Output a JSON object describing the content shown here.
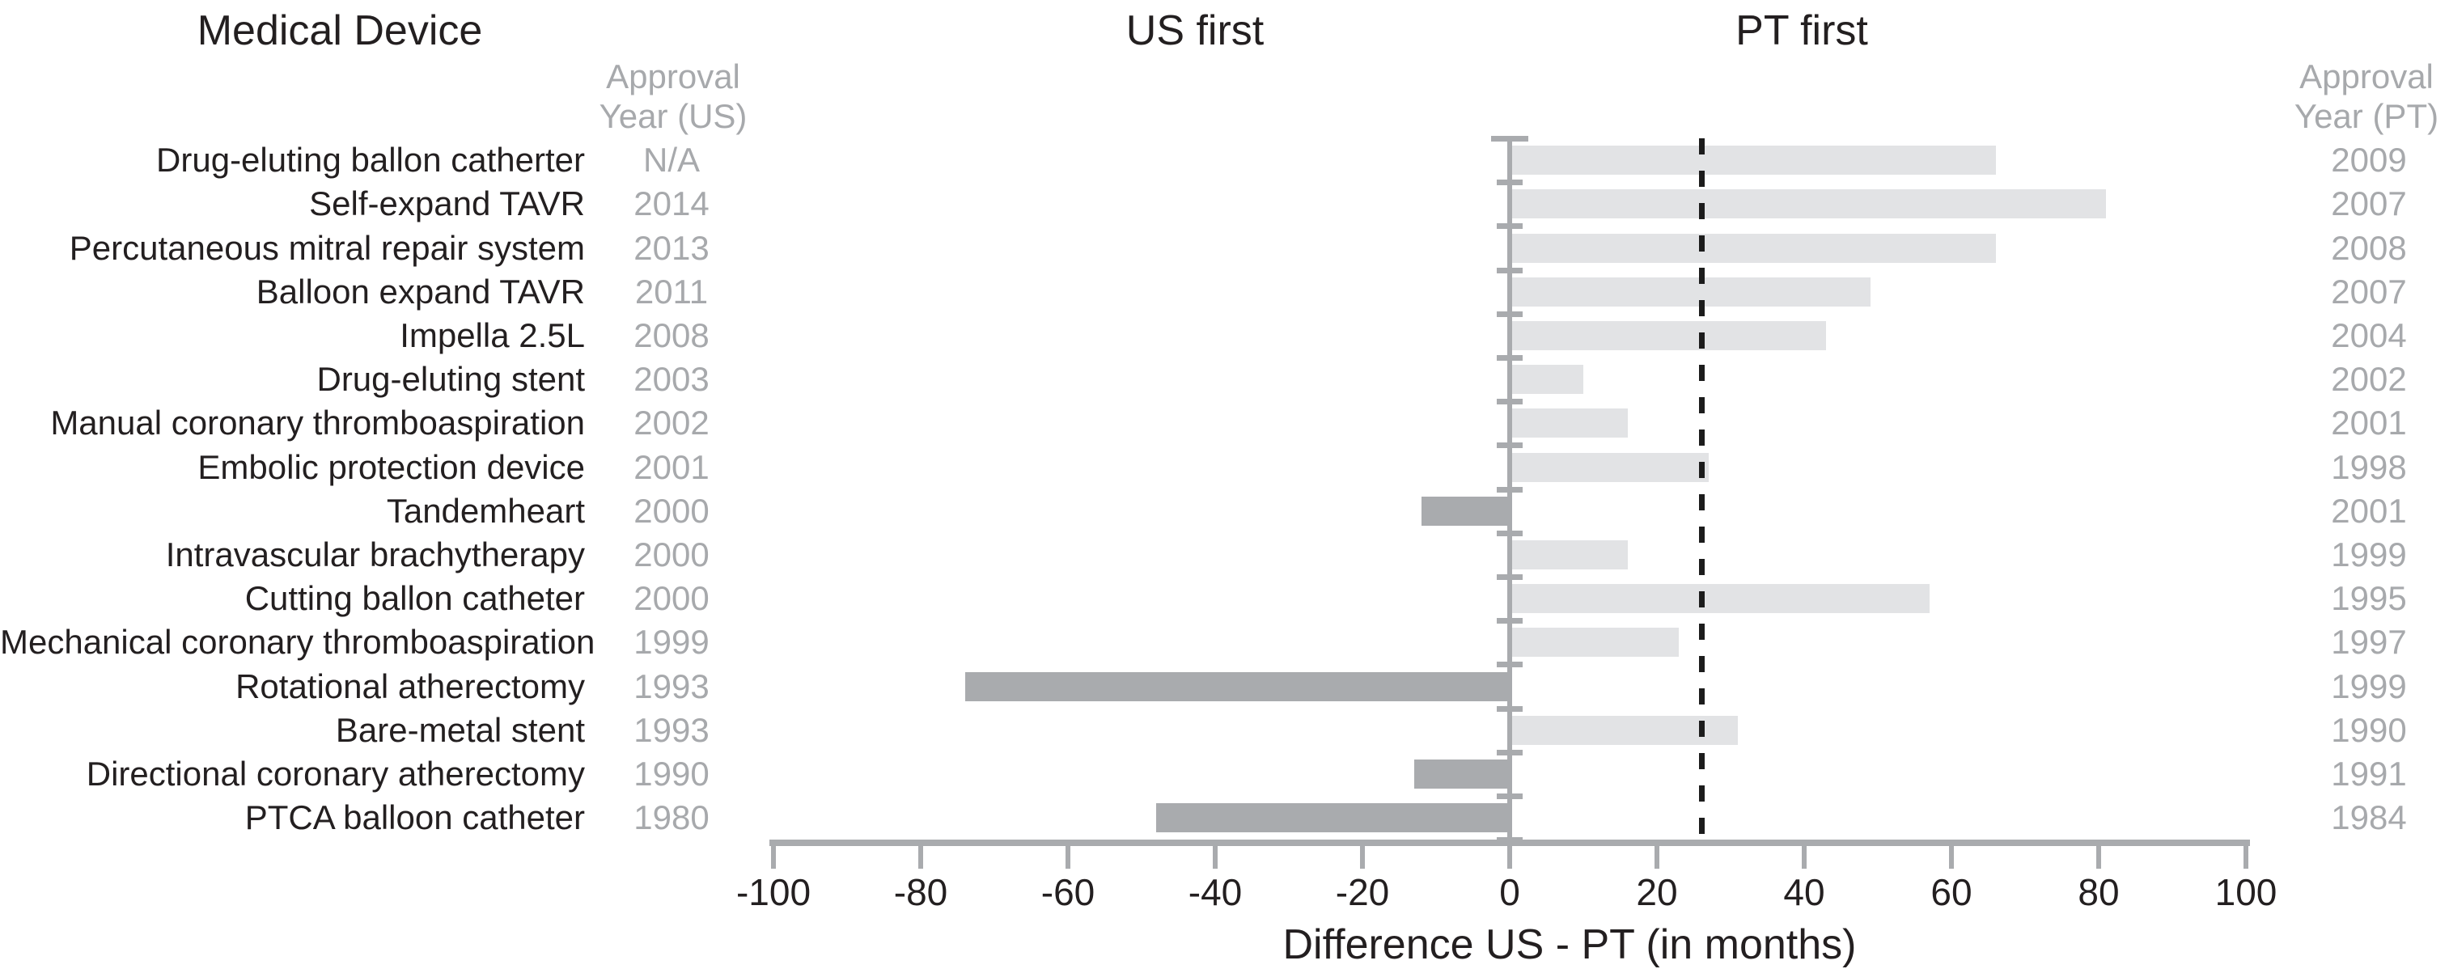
{
  "headers": {
    "device_col_title": "Medical Device",
    "us_first": "US first",
    "pt_first": "PT first",
    "us_year_header_line1": "Approval",
    "us_year_header_line2": "Year (US)",
    "pt_year_header_line1": "Approval",
    "pt_year_header_line2": "Year (PT)"
  },
  "axis": {
    "title": "Difference US - PT (in months)"
  },
  "colors": {
    "positive_bar": "#e2e3e5",
    "negative_bar": "#a9abae",
    "axis_gray": "#a9abae",
    "gray_text": "#a7a9ac",
    "black_text": "#231f20",
    "dashed_line": "#1c1c1c"
  },
  "chart_data": {
    "type": "bar",
    "orientation": "horizontal",
    "title": "Difference US - PT (in months)",
    "xlabel": "Difference US - PT (in months)",
    "xlim": [
      -100,
      100
    ],
    "xticks": [
      -100,
      -80,
      -60,
      -40,
      -20,
      0,
      20,
      40,
      60,
      80,
      100
    ],
    "dashed_reference_value": 26,
    "legend_headers": [
      "Medical Device",
      "Approval Year (US)",
      "US first",
      "PT first",
      "Approval Year (PT)"
    ],
    "rows": [
      {
        "device": "Drug-eluting ballon catherter",
        "us_year": "N/A",
        "pt_year": "2009",
        "diff_months": 66
      },
      {
        "device": "Self-expand TAVR",
        "us_year": "2014",
        "pt_year": "2007",
        "diff_months": 81
      },
      {
        "device": "Percutaneous mitral repair system",
        "us_year": "2013",
        "pt_year": "2008",
        "diff_months": 66
      },
      {
        "device": "Balloon expand TAVR",
        "us_year": "2011",
        "pt_year": "2007",
        "diff_months": 49
      },
      {
        "device": "Impella 2.5L",
        "us_year": "2008",
        "pt_year": "2004",
        "diff_months": 43
      },
      {
        "device": "Drug-eluting stent",
        "us_year": "2003",
        "pt_year": "2002",
        "diff_months": 10
      },
      {
        "device": "Manual coronary thromboaspiration",
        "us_year": "2002",
        "pt_year": "2001",
        "diff_months": 16
      },
      {
        "device": "Embolic protection  device",
        "us_year": "2001",
        "pt_year": "1998",
        "diff_months": 27
      },
      {
        "device": "Tandemheart",
        "us_year": "2000",
        "pt_year": "2001",
        "diff_months": -12
      },
      {
        "device": "Intravascular brachytherapy",
        "us_year": "2000",
        "pt_year": "1999",
        "diff_months": 16
      },
      {
        "device": "Cutting ballon catheter",
        "us_year": "2000",
        "pt_year": "1995",
        "diff_months": 57
      },
      {
        "device": "Mechanical coronary thromboaspiration",
        "us_year": "1999",
        "pt_year": "1997",
        "diff_months": 23
      },
      {
        "device": "Rotational atherectomy",
        "us_year": "1993",
        "pt_year": "1999",
        "diff_months": -74
      },
      {
        "device": "Bare-metal stent",
        "us_year": "1993",
        "pt_year": "1990",
        "diff_months": 31
      },
      {
        "device": "Directional coronary atherectomy",
        "us_year": "1990",
        "pt_year": "1991",
        "diff_months": -13
      },
      {
        "device": "PTCA balloon catheter",
        "us_year": "1980",
        "pt_year": "1984",
        "diff_months": -48
      }
    ]
  }
}
